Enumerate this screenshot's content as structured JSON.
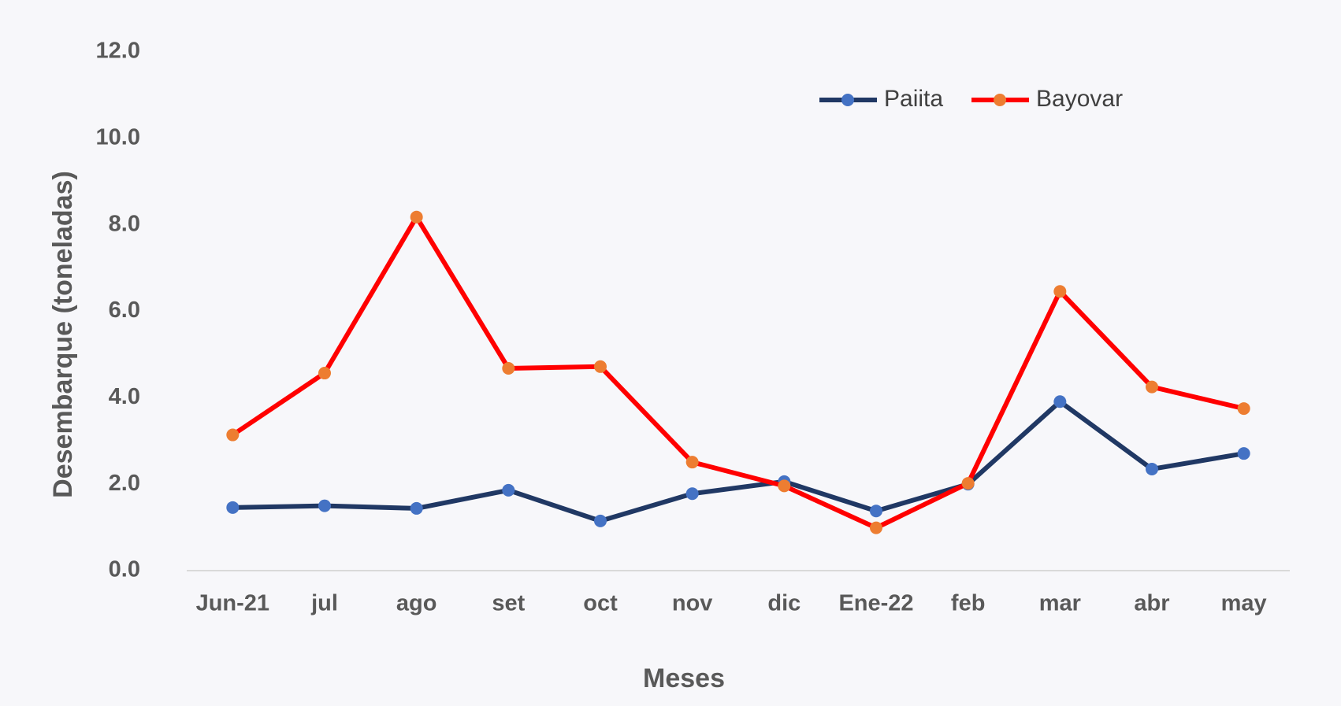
{
  "chart_data": {
    "type": "line",
    "x_label": "Meses",
    "y_label": "Desembarque (toneladas)",
    "categories": [
      "Jun-21",
      "jul",
      "ago",
      "set",
      "oct",
      "nov",
      "dic",
      "Ene-22",
      "feb",
      "mar",
      "abr",
      "may"
    ],
    "series": [
      {
        "name": "Paiita",
        "color": "#203864",
        "marker_color": "#4472c4",
        "values": [
          1.46,
          1.5,
          1.44,
          1.86,
          1.15,
          1.78,
          2.06,
          1.38,
          2.0,
          3.91,
          2.35,
          2.71
        ]
      },
      {
        "name": "Bayovar",
        "color": "#ff0000",
        "marker_color": "#ed7d31",
        "values": [
          3.14,
          4.57,
          8.18,
          4.68,
          4.72,
          2.51,
          1.96,
          0.99,
          2.02,
          6.46,
          4.25,
          3.75
        ]
      }
    ],
    "ylim": [
      0,
      12
    ],
    "yticks": [
      {
        "value": 0,
        "label": "0.0"
      },
      {
        "value": 2,
        "label": "2.0"
      },
      {
        "value": 4,
        "label": "4.0"
      },
      {
        "value": 6,
        "label": "6.0"
      },
      {
        "value": 8,
        "label": "8.0"
      },
      {
        "value": 10,
        "label": "10.0"
      },
      {
        "value": 12,
        "label": "12.0"
      }
    ],
    "grid": false,
    "legend": "top-right"
  }
}
